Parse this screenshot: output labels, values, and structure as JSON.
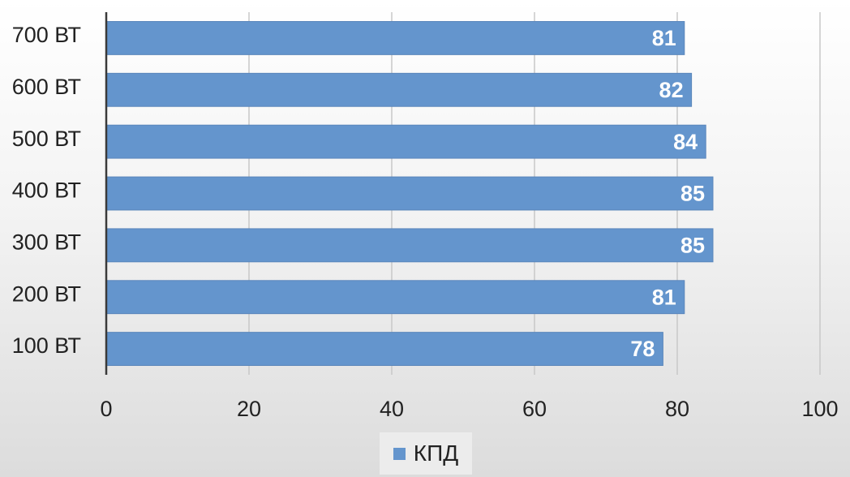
{
  "chart_data": {
    "type": "bar",
    "orientation": "horizontal",
    "categories": [
      "700 ВТ",
      "600 ВТ",
      "500 ВТ",
      "400 ВТ",
      "300 ВТ",
      "200 ВТ",
      "100 ВТ"
    ],
    "series": [
      {
        "name": "КПД",
        "values": [
          81,
          82,
          84,
          85,
          85,
          81,
          78
        ]
      }
    ],
    "xlim": [
      0,
      100
    ],
    "xticks": [
      0,
      20,
      40,
      60,
      80,
      100
    ],
    "title": "",
    "xlabel": "",
    "ylabel": "",
    "grid": true,
    "legend_position": "bottom",
    "data_labels": true,
    "colors": {
      "bar": "#6495cd",
      "bar_edge": "#5a86bb",
      "grid": "#c8c8c8",
      "axis": "#3a3a3a",
      "label": "#222222",
      "data_label": "#ffffff"
    }
  }
}
